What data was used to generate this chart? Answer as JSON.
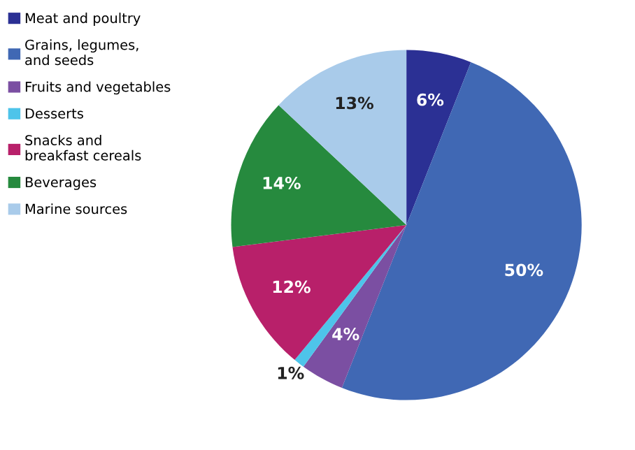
{
  "chart_data": {
    "type": "pie",
    "categories": [
      "Meat and poultry",
      "Grains, legumes,\nand seeds",
      "Fruits and vegetables",
      "Desserts",
      "Snacks and\nbreakfast cereals",
      "Beverages",
      "Marine sources"
    ],
    "values": [
      6,
      50,
      4,
      1,
      12,
      14,
      13
    ],
    "colors": [
      "#2b3094",
      "#4068b4",
      "#7b4fa2",
      "#4ec4ea",
      "#b8206a",
      "#268a3e",
      "#a9cbea"
    ],
    "value_labels": [
      "6%",
      "50%",
      "4%",
      "1%",
      "12%",
      "14%",
      "13%"
    ],
    "legend": "left"
  }
}
